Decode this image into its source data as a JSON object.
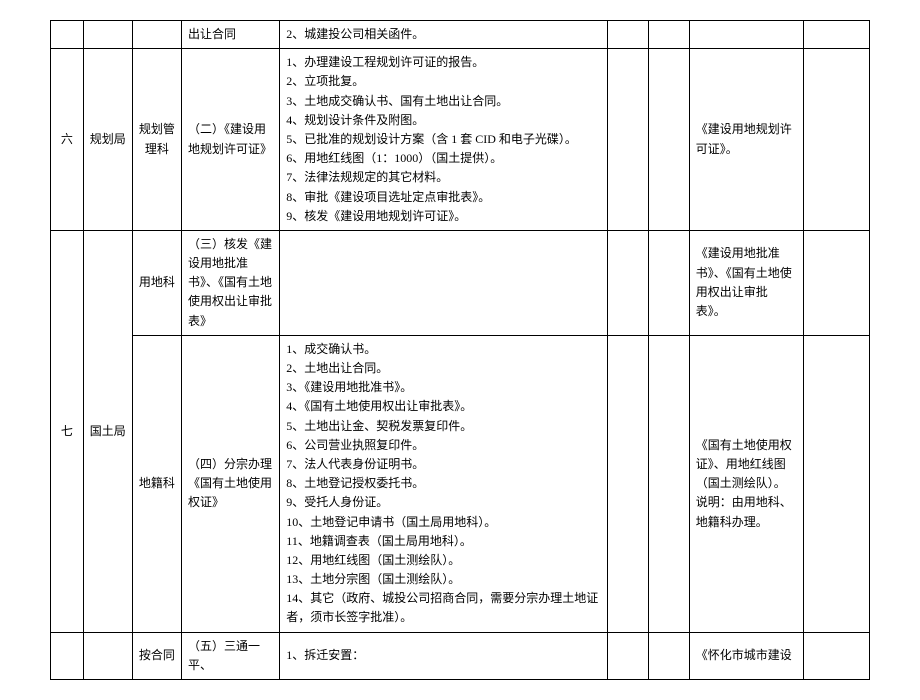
{
  "rows": [
    {
      "c0": "",
      "c1": "",
      "c2": "",
      "c3": "出让合同",
      "c4": [
        "2、城建投公司相关函件。"
      ],
      "c5": "",
      "c6": "",
      "c7": "",
      "c8": ""
    },
    {
      "c0": "六",
      "c1": "规划局",
      "c2": "规划管理科",
      "c3": "（二）《建设用地规划许可证》",
      "c4": [
        "1、办理建设工程规划许可证的报告。",
        "2、立项批复。",
        "3、土地成交确认书、国有土地出让合同。",
        "4、规划设计条件及附图。",
        "5、已批准的规划设计方案（含 1 套 CID 和电子光碟）。",
        "6、用地红线图（1：1000）（国土提供）。",
        "7、法律法规规定的其它材料。",
        "8、审批《建设项目选址定点审批表》。",
        "9、核发《建设用地规划许可证》。"
      ],
      "c5": "",
      "c6": "",
      "c7": "《建设用地规划许可证》。",
      "c8": ""
    },
    {
      "c0": "七",
      "c0_rowspan": 2,
      "c1": "国土局",
      "c1_rowspan": 2,
      "c2": "用地科",
      "c3": "（三）核发《建设用地批准书》、《国有土地使用权出让审批表》",
      "c4": [],
      "c5": "",
      "c6": "",
      "c7": "《建设用地批准书》、《国有土地使用权出让审批表》。",
      "c8": ""
    },
    {
      "c2": "地籍科",
      "c3": "（四）分宗办理《国有土地使用权证》",
      "c4": [
        "1、成交确认书。",
        "2、土地出让合同。",
        "3、《建设用地批准书》。",
        "4、《国有土地使用权出让审批表》。",
        "5、土地出让金、契税发票复印件。",
        "6、公司营业执照复印件。",
        "7、法人代表身份证明书。",
        "8、土地登记授权委托书。",
        "9、受托人身份证。",
        "10、土地登记申请书（国土局用地科）。",
        "11、地籍调查表（国土局用地科）。",
        "12、用地红线图（国土测绘队）。",
        "13、土地分宗图（国土测绘队）。",
        "14、其它（政府、城投公司招商合同，需要分宗办理土地证者，须市长签字批准）。"
      ],
      "c5": "",
      "c6": "",
      "c7": "《国有土地使用权证》、用地红线图（国土测绘队）。\n说明：由用地科、地籍科办理。",
      "c8": ""
    },
    {
      "c0": "",
      "c1": "",
      "c2": "按合同",
      "c3": "（五）三通一平、",
      "c4": [
        "1、拆迁安置："
      ],
      "c5": "",
      "c6": "",
      "c7": "《怀化市城市建设",
      "c8": ""
    }
  ]
}
